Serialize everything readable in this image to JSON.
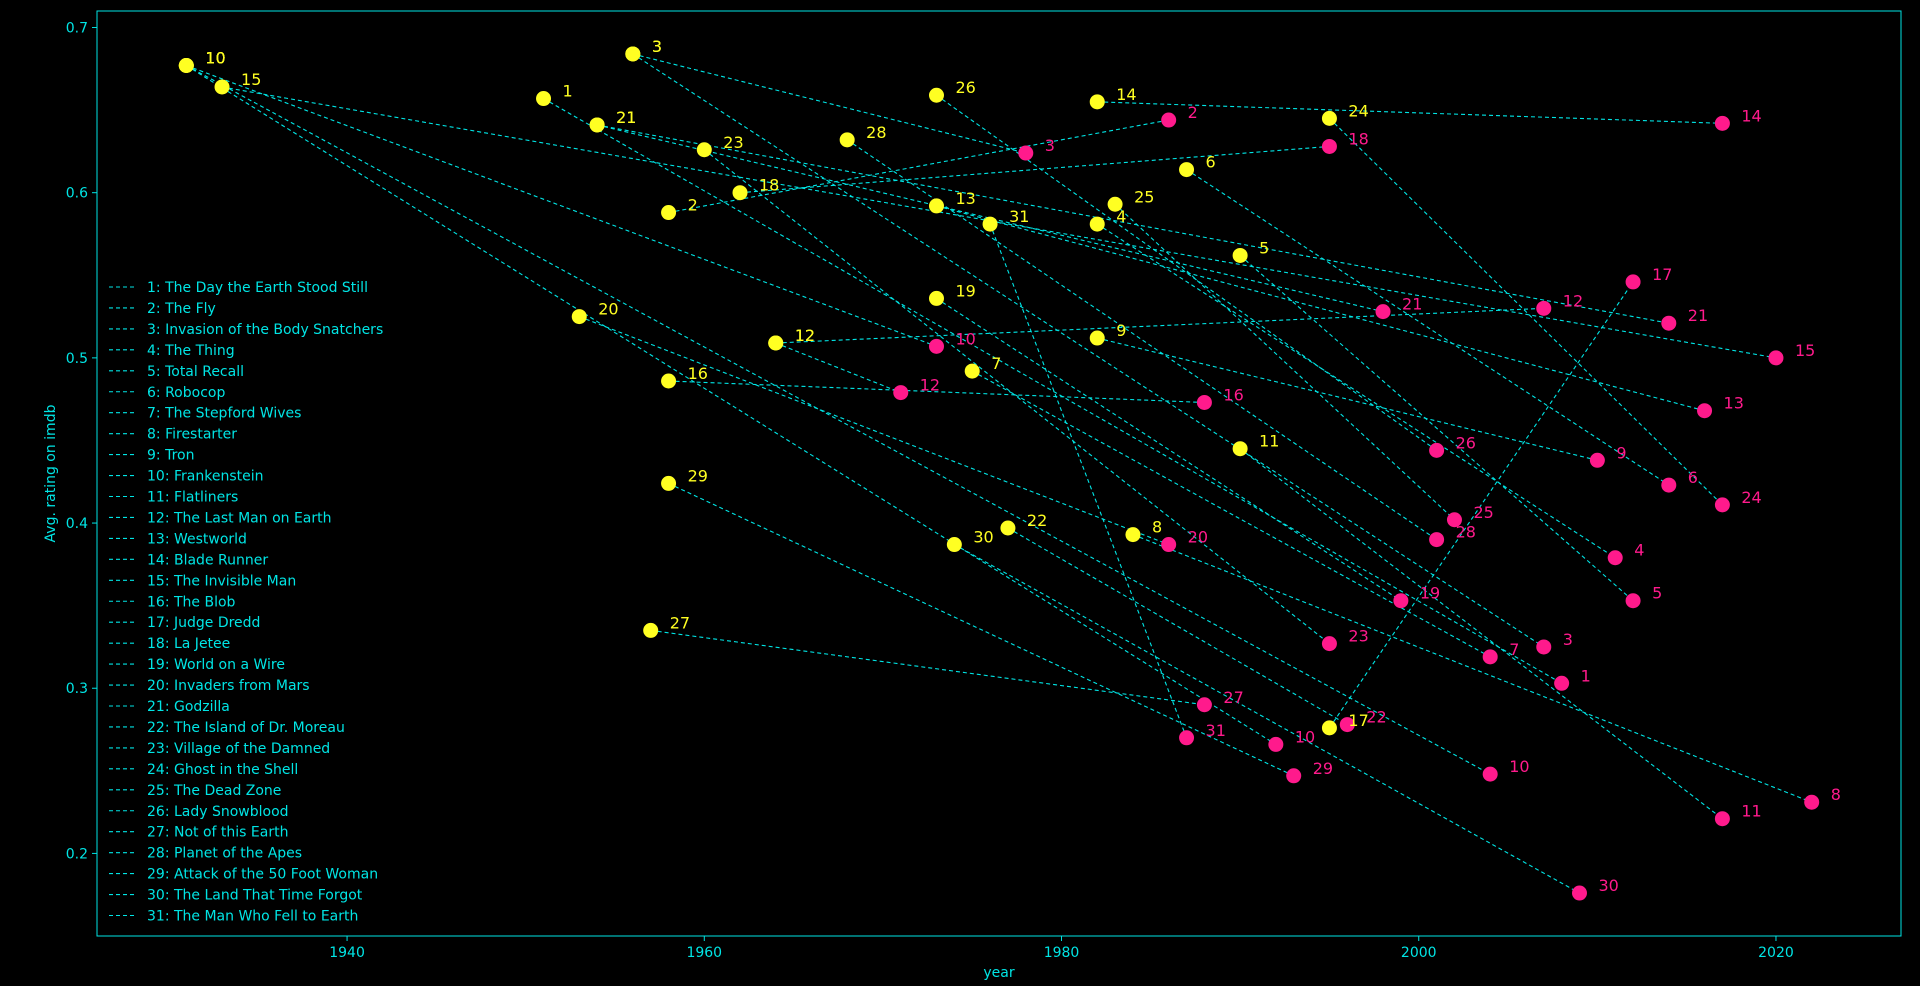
{
  "chart_data": {
    "type": "scatter",
    "title": "",
    "xlabel": "year",
    "ylabel": "Avg. rating on imdb",
    "xlim": [
      1926,
      2027
    ],
    "ylim": [
      0.15,
      0.71
    ],
    "xticks": [
      1940,
      1960,
      1980,
      2000,
      2020
    ],
    "yticks": [
      0.2,
      0.3,
      0.4,
      0.5,
      0.6,
      0.7
    ],
    "grid": false,
    "legend_position": "middle-left",
    "colors": {
      "background": "#000000",
      "axis": "#00e5e5",
      "original": "#ffff22",
      "remake": "#ff1a8c",
      "connector": "#00e5e5"
    },
    "pairs": [
      {
        "id": "1",
        "title": "The Day the Earth Stood Still",
        "original": {
          "year": 1951,
          "rating": 0.657
        },
        "remake": {
          "year": 2008,
          "rating": 0.303
        }
      },
      {
        "id": "2",
        "title": "The Fly",
        "original": {
          "year": 1958,
          "rating": 0.588
        },
        "remake": {
          "year": 1986,
          "rating": 0.644
        }
      },
      {
        "id": "3",
        "title": "Invasion of the Body Snatchers",
        "original": {
          "year": 1956,
          "rating": 0.684
        },
        "remake": {
          "year": 1978,
          "rating": 0.624
        }
      },
      {
        "id": "3",
        "title": "Invasion of the Body Snatchers",
        "original": {
          "year": 1956,
          "rating": 0.684
        },
        "remake": {
          "year": 2007,
          "rating": 0.325
        }
      },
      {
        "id": "4",
        "title": "The Thing",
        "original": {
          "year": 1982,
          "rating": 0.581
        },
        "remake": {
          "year": 2011,
          "rating": 0.379
        }
      },
      {
        "id": "5",
        "title": "Total Recall",
        "original": {
          "year": 1990,
          "rating": 0.562
        },
        "remake": {
          "year": 2012,
          "rating": 0.353
        }
      },
      {
        "id": "6",
        "title": "Robocop",
        "original": {
          "year": 1987,
          "rating": 0.614
        },
        "remake": {
          "year": 2014,
          "rating": 0.423
        }
      },
      {
        "id": "7",
        "title": "The Stepford Wives",
        "original": {
          "year": 1975,
          "rating": 0.492
        },
        "remake": {
          "year": 2004,
          "rating": 0.319
        }
      },
      {
        "id": "8",
        "title": "Firestarter",
        "original": {
          "year": 1984,
          "rating": 0.393
        },
        "remake": {
          "year": 2022,
          "rating": 0.231
        }
      },
      {
        "id": "9",
        "title": "Tron",
        "original": {
          "year": 1982,
          "rating": 0.512
        },
        "remake": {
          "year": 2010,
          "rating": 0.438
        }
      },
      {
        "id": "10",
        "title": "Frankenstein",
        "original": {
          "year": 1931,
          "rating": 0.677
        },
        "remake": {
          "year": 1973,
          "rating": 0.507
        }
      },
      {
        "id": "10",
        "title": "Frankenstein",
        "original": {
          "year": 1931,
          "rating": 0.677
        },
        "remake": {
          "year": 1992,
          "rating": 0.266
        }
      },
      {
        "id": "10",
        "title": "Frankenstein",
        "original": {
          "year": 1931,
          "rating": 0.677
        },
        "remake": {
          "year": 2004,
          "rating": 0.248
        }
      },
      {
        "id": "11",
        "title": "Flatliners",
        "original": {
          "year": 1990,
          "rating": 0.445
        },
        "remake": {
          "year": 2017,
          "rating": 0.221
        }
      },
      {
        "id": "12",
        "title": "The Last Man on Earth",
        "original": {
          "year": 1964,
          "rating": 0.509
        },
        "remake": {
          "year": 1971,
          "rating": 0.479
        }
      },
      {
        "id": "12",
        "title": "The Last Man on Earth",
        "original": {
          "year": 1964,
          "rating": 0.509
        },
        "remake": {
          "year": 2007,
          "rating": 0.53
        }
      },
      {
        "id": "13",
        "title": "Westworld",
        "original": {
          "year": 1973,
          "rating": 0.592
        },
        "remake": {
          "year": 2016,
          "rating": 0.468
        }
      },
      {
        "id": "14",
        "title": "Blade Runner",
        "original": {
          "year": 1982,
          "rating": 0.655
        },
        "remake": {
          "year": 2017,
          "rating": 0.642
        }
      },
      {
        "id": "15",
        "title": "The Invisible Man",
        "original": {
          "year": 1933,
          "rating": 0.664
        },
        "remake": {
          "year": 2020,
          "rating": 0.5
        }
      },
      {
        "id": "16",
        "title": "The Blob",
        "original": {
          "year": 1958,
          "rating": 0.486
        },
        "remake": {
          "year": 1988,
          "rating": 0.473
        }
      },
      {
        "id": "17",
        "title": "Judge Dredd",
        "original": {
          "year": 1995,
          "rating": 0.276
        },
        "remake": {
          "year": 2012,
          "rating": 0.546
        }
      },
      {
        "id": "18",
        "title": "La Jetee",
        "original": {
          "year": 1962,
          "rating": 0.6
        },
        "remake": {
          "year": 1995,
          "rating": 0.628
        }
      },
      {
        "id": "19",
        "title": "World on a Wire",
        "original": {
          "year": 1973,
          "rating": 0.536
        },
        "remake": {
          "year": 1999,
          "rating": 0.353
        }
      },
      {
        "id": "20",
        "title": "Invaders from Mars",
        "original": {
          "year": 1953,
          "rating": 0.525
        },
        "remake": {
          "year": 1986,
          "rating": 0.387
        }
      },
      {
        "id": "21",
        "title": "Godzilla",
        "original": {
          "year": 1954,
          "rating": 0.641
        },
        "remake": {
          "year": 1998,
          "rating": 0.528
        }
      },
      {
        "id": "21",
        "title": "Godzilla",
        "original": {
          "year": 1954,
          "rating": 0.641
        },
        "remake": {
          "year": 2014,
          "rating": 0.521
        }
      },
      {
        "id": "22",
        "title": "The Island of Dr. Moreau",
        "original": {
          "year": 1977,
          "rating": 0.397
        },
        "remake": {
          "year": 1996,
          "rating": 0.278
        }
      },
      {
        "id": "23",
        "title": "Village of the Damned",
        "original": {
          "year": 1960,
          "rating": 0.626
        },
        "remake": {
          "year": 1995,
          "rating": 0.327
        }
      },
      {
        "id": "24",
        "title": "Ghost in the Shell",
        "original": {
          "year": 1995,
          "rating": 0.645
        },
        "remake": {
          "year": 2017,
          "rating": 0.411
        }
      },
      {
        "id": "25",
        "title": "The Dead Zone",
        "original": {
          "year": 1983,
          "rating": 0.593
        },
        "remake": {
          "year": 2002,
          "rating": 0.402
        }
      },
      {
        "id": "26",
        "title": "Lady Snowblood",
        "original": {
          "year": 1973,
          "rating": 0.659
        },
        "remake": {
          "year": 2001,
          "rating": 0.444
        }
      },
      {
        "id": "27",
        "title": "Not of this Earth",
        "original": {
          "year": 1957,
          "rating": 0.335
        },
        "remake": {
          "year": 1988,
          "rating": 0.29
        }
      },
      {
        "id": "28",
        "title": "Planet of the Apes",
        "original": {
          "year": 1968,
          "rating": 0.632
        },
        "remake": {
          "year": 2001,
          "rating": 0.39
        }
      },
      {
        "id": "29",
        "title": "Attack of the 50 Foot Woman",
        "original": {
          "year": 1958,
          "rating": 0.424
        },
        "remake": {
          "year": 1993,
          "rating": 0.247
        }
      },
      {
        "id": "30",
        "title": "The Land That Time Forgot",
        "original": {
          "year": 1974,
          "rating": 0.387
        },
        "remake": {
          "year": 2009,
          "rating": 0.176
        }
      },
      {
        "id": "31",
        "title": "The Man Who Fell to Earth",
        "original": {
          "year": 1976,
          "rating": 0.581
        },
        "remake": {
          "year": 1987,
          "rating": 0.27
        }
      }
    ],
    "legend": [
      "1: The Day the Earth Stood Still",
      "2: The Fly",
      "3: Invasion of the Body Snatchers",
      "4: The Thing",
      "5: Total Recall",
      "6: Robocop",
      "7: The Stepford Wives",
      "8: Firestarter",
      "9: Tron",
      "10: Frankenstein",
      "11: Flatliners",
      "12: The Last Man on Earth",
      "13: Westworld",
      "14: Blade Runner",
      "15: The Invisible Man",
      "16: The Blob",
      "17: Judge Dredd",
      "18: La Jetee",
      "19: World on a Wire",
      "20: Invaders from Mars",
      "21: Godzilla",
      "22: The Island of Dr. Moreau",
      "23: Village of the Damned",
      "24: Ghost in the Shell",
      "25: The Dead Zone",
      "26: Lady Snowblood",
      "27: Not of this Earth",
      "28: Planet of the Apes",
      "29: Attack of the 50 Foot Woman",
      "30: The Land That Time Forgot",
      "31: The Man Who Fell to Earth"
    ]
  }
}
